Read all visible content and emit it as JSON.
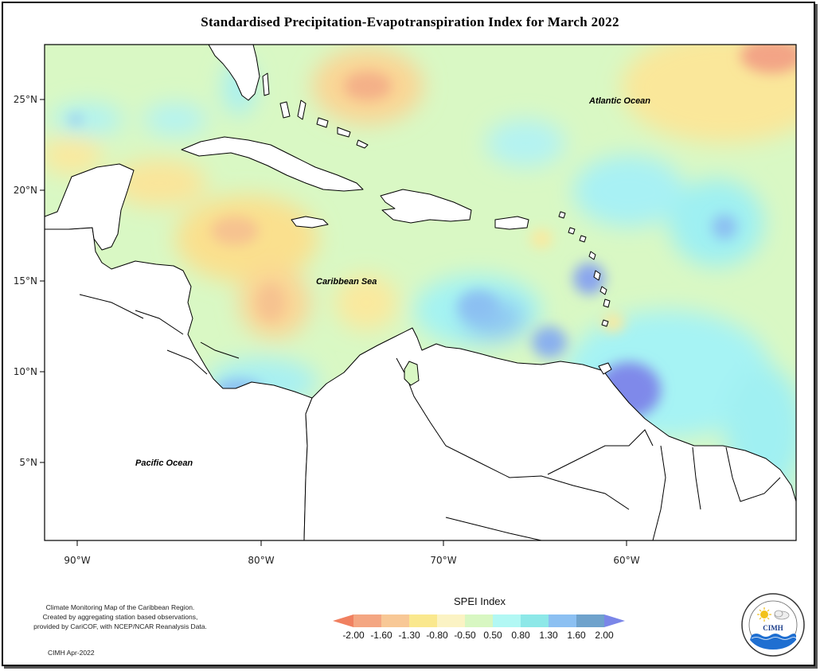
{
  "title": "Standardised Precipitation-Evapotranspiration Index for March 2022",
  "map": {
    "lat_ticks": [
      "25°N",
      "20°N",
      "15°N",
      "10°N",
      "5°N"
    ],
    "lon_ticks": [
      "90°W",
      "80°W",
      "70°W",
      "60°W"
    ],
    "labels": {
      "atlantic": "Atlantic Ocean",
      "caribbean": "Caribbean Sea",
      "pacific": "Pacific Ocean"
    }
  },
  "legend": {
    "title": "SPEI Index",
    "values": [
      "-2.00",
      "-1.60",
      "-1.30",
      "-0.80",
      "-0.50",
      "0.50",
      "0.80",
      "1.30",
      "1.60",
      "2.00"
    ],
    "colors": [
      "#f08060",
      "#f4a682",
      "#f8c896",
      "#fae88e",
      "#fbf3c4",
      "#d8f7c2",
      "#b2f8f4",
      "#8de8e8",
      "#8cc0f2",
      "#6fa2cc",
      "#7a86e8"
    ]
  },
  "credits": {
    "line1": "Climate Monitoring Map of the Caribbean Region.",
    "line2": "Created by aggregating station based observations,",
    "line3": "provided by CariCOF, with NCEP/NCAR Reanalysis Data.",
    "line4": "CIMH Apr-2022"
  },
  "logo": {
    "text": "CIMH"
  }
}
